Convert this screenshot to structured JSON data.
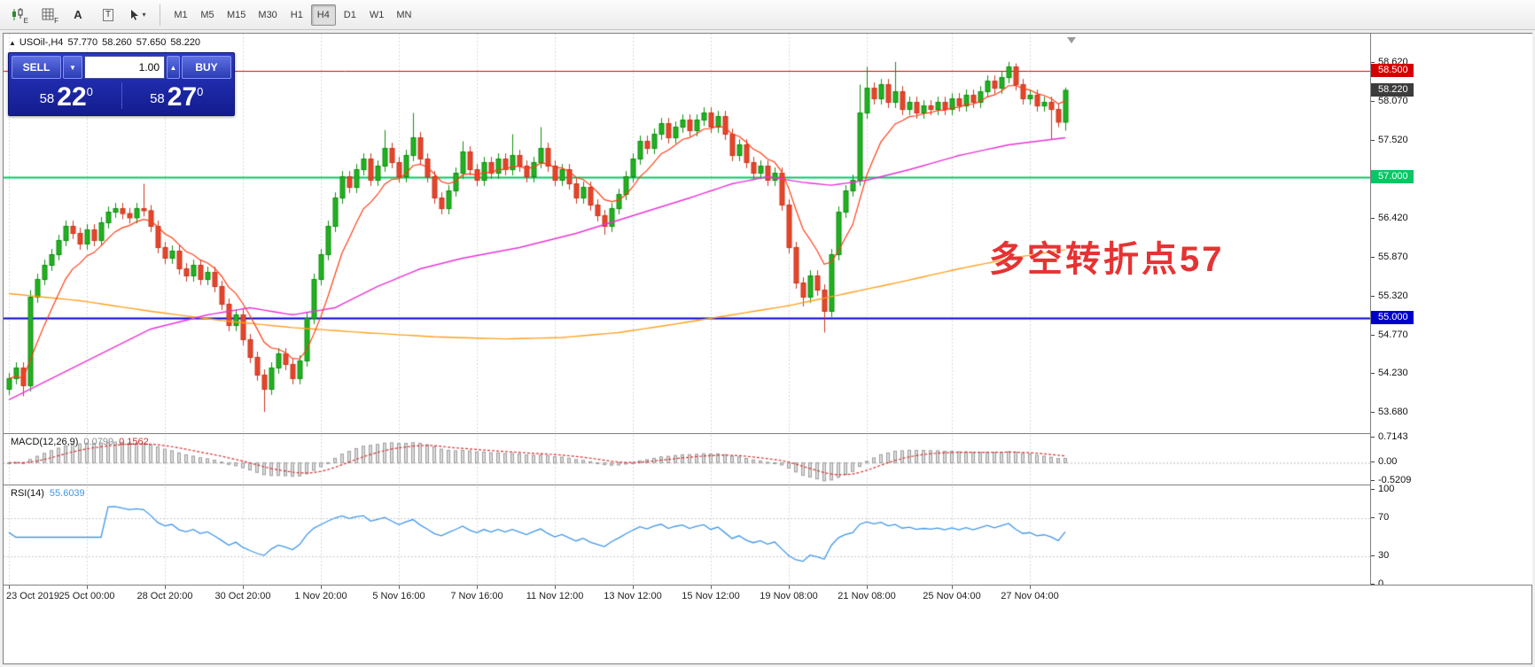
{
  "toolbar": {
    "icons": [
      {
        "id": "candle-chart",
        "sub": "E"
      },
      {
        "id": "indicator-grid",
        "sub": "F"
      },
      {
        "id": "font-tool",
        "label": "A"
      },
      {
        "id": "text-label-tool",
        "label": "T"
      },
      {
        "id": "cursor-tool",
        "chevron": "▾"
      }
    ],
    "timeframes": [
      {
        "label": "M1",
        "active": false
      },
      {
        "label": "M5",
        "active": false
      },
      {
        "label": "M15",
        "active": false
      },
      {
        "label": "M30",
        "active": false
      },
      {
        "label": "H1",
        "active": false
      },
      {
        "label": "H4",
        "active": true
      },
      {
        "label": "D1",
        "active": false
      },
      {
        "label": "W1",
        "active": false
      },
      {
        "label": "MN",
        "active": false
      }
    ]
  },
  "symbol_line": {
    "collapse_glyph": "▲",
    "symbol": "USOil-,H4",
    "open": "57.770",
    "high": "58.260",
    "low": "57.650",
    "close": "58.220"
  },
  "one_click": {
    "sell_label": "SELL",
    "buy_label": "BUY",
    "volume": "1.00",
    "spin_down": "▼",
    "spin_up": "▲",
    "sell_price": {
      "small": "58",
      "big": "22",
      "sup": "0"
    },
    "buy_price": {
      "small": "58",
      "big": "27",
      "sup": "0"
    }
  },
  "annotation": {
    "text": "多空转折点57",
    "color": "#e53333"
  },
  "macd_panel": {
    "name": "MACD(12,26,9)",
    "main_value": "0.0799",
    "signal_value": "0.1562"
  },
  "rsi_panel": {
    "name": "RSI(14)",
    "value": "55.6039"
  },
  "chart_data": {
    "type": "candlestick",
    "symbol": "USOil-",
    "timeframe": "H4",
    "price_axis": {
      "pmax": 59.02,
      "pmin": 53.38,
      "ticks": [
        {
          "v": 58.62,
          "label": "58.620"
        },
        {
          "v": 58.07,
          "label": "58.070"
        },
        {
          "v": 57.52,
          "label": "57.520"
        },
        {
          "v": 56.42,
          "label": "56.420"
        },
        {
          "v": 55.87,
          "label": "55.870"
        },
        {
          "v": 55.32,
          "label": "55.320"
        },
        {
          "v": 54.77,
          "label": "54.770"
        },
        {
          "v": 54.23,
          "label": "54.230"
        },
        {
          "v": 53.68,
          "label": "53.680"
        }
      ]
    },
    "hlines": [
      {
        "v": 58.5,
        "label": "58.500",
        "color": "#d40000",
        "width": 1
      },
      {
        "v": 57.0,
        "label": "57.000",
        "color": "#00c864",
        "width": 2
      },
      {
        "v": 55.0,
        "label": "55.000",
        "color": "#0000cc",
        "width": 2
      }
    ],
    "current_price": {
      "v": 58.22,
      "label": "58.220",
      "color": "#3c3c3c"
    },
    "colors": {
      "up": "#0b8f0b",
      "up_fill": "#23b023",
      "down": "#c8361f",
      "down_fill": "#e6452b",
      "ma_fast": "#ff3c14",
      "ma_mid": "#e832d8",
      "ma_slow": "#ffa01e",
      "grid": "#d9d9d9",
      "macd_hist_fill": "#dcdcdc",
      "macd_hist_stroke": "#9c9c9c",
      "macd_signal": "#d83030",
      "rsi_line": "#3e96e8"
    },
    "ma_fast_period": 8,
    "ma_mid_anchors": [
      [
        0,
        53.85
      ],
      [
        10,
        54.35
      ],
      [
        20,
        54.85
      ],
      [
        28,
        55.05
      ],
      [
        34,
        55.15
      ],
      [
        40,
        55.05
      ],
      [
        46,
        55.15
      ],
      [
        52,
        55.45
      ],
      [
        58,
        55.7
      ],
      [
        64,
        55.85
      ],
      [
        72,
        56.0
      ],
      [
        80,
        56.2
      ],
      [
        88,
        56.45
      ],
      [
        96,
        56.7
      ],
      [
        102,
        56.9
      ],
      [
        107,
        57.0
      ],
      [
        112,
        56.92
      ],
      [
        116,
        56.88
      ],
      [
        121,
        56.95
      ],
      [
        127,
        57.1
      ],
      [
        134,
        57.3
      ],
      [
        141,
        57.45
      ],
      [
        149,
        57.55
      ]
    ],
    "ma_slow_anchors": [
      [
        0,
        55.35
      ],
      [
        10,
        55.25
      ],
      [
        20,
        55.1
      ],
      [
        30,
        54.97
      ],
      [
        40,
        54.87
      ],
      [
        50,
        54.8
      ],
      [
        60,
        54.74
      ],
      [
        70,
        54.71
      ],
      [
        78,
        54.73
      ],
      [
        86,
        54.8
      ],
      [
        94,
        54.92
      ],
      [
        102,
        55.05
      ],
      [
        110,
        55.18
      ],
      [
        118,
        55.35
      ],
      [
        126,
        55.52
      ],
      [
        134,
        55.7
      ],
      [
        142,
        55.86
      ],
      [
        149,
        55.97
      ]
    ],
    "candles": [
      [
        54.0,
        54.23,
        53.92,
        54.15
      ],
      [
        54.15,
        54.38,
        54.07,
        54.3
      ],
      [
        54.3,
        54.38,
        53.9,
        54.05
      ],
      [
        54.05,
        55.4,
        53.97,
        55.3
      ],
      [
        55.3,
        55.63,
        55.22,
        55.55
      ],
      [
        55.55,
        55.83,
        55.47,
        55.75
      ],
      [
        55.75,
        55.98,
        55.67,
        55.9
      ],
      [
        55.9,
        56.18,
        55.82,
        56.1
      ],
      [
        56.1,
        56.38,
        56.02,
        56.3
      ],
      [
        56.3,
        56.38,
        56.12,
        56.2
      ],
      [
        56.2,
        56.28,
        55.97,
        56.05
      ],
      [
        56.05,
        56.33,
        55.97,
        56.25
      ],
      [
        56.25,
        56.33,
        56.02,
        56.1
      ],
      [
        56.1,
        56.43,
        56.02,
        56.35
      ],
      [
        56.35,
        56.58,
        56.27,
        56.5
      ],
      [
        56.5,
        56.63,
        56.42,
        56.55
      ],
      [
        56.55,
        56.63,
        56.4,
        56.48
      ],
      [
        56.48,
        56.56,
        56.34,
        56.42
      ],
      [
        56.42,
        56.63,
        56.34,
        56.55
      ],
      [
        56.55,
        56.9,
        56.44,
        56.52
      ],
      [
        56.52,
        56.6,
        56.22,
        56.3
      ],
      [
        56.3,
        56.38,
        55.92,
        56.0
      ],
      [
        56.0,
        56.08,
        55.77,
        55.85
      ],
      [
        55.85,
        56.03,
        55.77,
        55.95
      ],
      [
        55.95,
        56.03,
        55.62,
        55.7
      ],
      [
        55.7,
        55.78,
        55.52,
        55.6
      ],
      [
        55.6,
        55.83,
        55.52,
        55.75
      ],
      [
        55.75,
        55.83,
        55.47,
        55.55
      ],
      [
        55.55,
        55.73,
        55.47,
        55.65
      ],
      [
        55.65,
        55.73,
        55.37,
        55.45
      ],
      [
        55.45,
        55.53,
        55.12,
        55.2
      ],
      [
        55.2,
        55.28,
        54.82,
        54.9
      ],
      [
        54.9,
        55.13,
        54.82,
        55.05
      ],
      [
        55.05,
        55.13,
        54.62,
        54.7
      ],
      [
        54.7,
        54.78,
        54.37,
        54.45
      ],
      [
        54.45,
        54.53,
        54.12,
        54.2
      ],
      [
        54.2,
        54.28,
        53.68,
        54.0
      ],
      [
        54.0,
        54.38,
        53.92,
        54.3
      ],
      [
        54.3,
        54.58,
        54.22,
        54.5
      ],
      [
        54.5,
        54.58,
        54.27,
        54.35
      ],
      [
        54.35,
        54.43,
        54.07,
        54.15
      ],
      [
        54.15,
        54.48,
        54.07,
        54.4
      ],
      [
        54.4,
        55.08,
        54.32,
        55.0
      ],
      [
        55.0,
        55.63,
        54.92,
        55.55
      ],
      [
        55.55,
        55.98,
        55.47,
        55.9
      ],
      [
        55.9,
        56.38,
        55.82,
        56.3
      ],
      [
        56.3,
        56.78,
        56.22,
        56.7
      ],
      [
        56.7,
        57.08,
        56.62,
        57.0
      ],
      [
        57.0,
        57.08,
        56.77,
        56.85
      ],
      [
        56.85,
        57.18,
        56.77,
        57.1
      ],
      [
        57.1,
        57.33,
        57.02,
        57.25
      ],
      [
        57.25,
        57.33,
        56.87,
        56.95
      ],
      [
        56.95,
        57.23,
        56.87,
        57.15
      ],
      [
        57.15,
        57.66,
        57.07,
        57.4
      ],
      [
        57.4,
        57.48,
        57.12,
        57.2
      ],
      [
        57.2,
        57.28,
        56.92,
        57.0
      ],
      [
        57.0,
        57.38,
        56.92,
        57.3
      ],
      [
        57.3,
        57.9,
        57.22,
        57.55
      ],
      [
        57.55,
        57.63,
        57.17,
        57.25
      ],
      [
        57.25,
        57.33,
        56.92,
        57.0
      ],
      [
        57.0,
        57.08,
        56.62,
        56.7
      ],
      [
        56.7,
        56.78,
        56.47,
        56.55
      ],
      [
        56.55,
        56.88,
        56.47,
        56.8
      ],
      [
        56.8,
        57.13,
        56.72,
        57.05
      ],
      [
        57.05,
        57.5,
        56.97,
        57.35
      ],
      [
        57.35,
        57.43,
        57.02,
        57.1
      ],
      [
        57.1,
        57.18,
        56.87,
        56.95
      ],
      [
        56.95,
        57.28,
        56.87,
        57.2
      ],
      [
        57.2,
        57.28,
        56.97,
        57.05
      ],
      [
        57.05,
        57.33,
        56.97,
        57.25
      ],
      [
        57.25,
        57.33,
        57.02,
        57.1
      ],
      [
        57.1,
        57.6,
        57.02,
        57.3
      ],
      [
        57.3,
        57.38,
        57.07,
        57.15
      ],
      [
        57.15,
        57.23,
        56.92,
        57.0
      ],
      [
        57.0,
        57.28,
        56.92,
        57.2
      ],
      [
        57.2,
        57.7,
        57.12,
        57.4
      ],
      [
        57.4,
        57.48,
        57.07,
        57.15
      ],
      [
        57.15,
        57.23,
        56.87,
        56.95
      ],
      [
        56.95,
        57.18,
        56.87,
        57.1
      ],
      [
        57.1,
        57.18,
        56.82,
        56.9
      ],
      [
        56.9,
        56.98,
        56.62,
        56.7
      ],
      [
        56.7,
        56.93,
        56.62,
        56.85
      ],
      [
        56.85,
        56.93,
        56.52,
        56.6
      ],
      [
        56.6,
        56.68,
        56.37,
        56.45
      ],
      [
        56.45,
        56.53,
        56.18,
        56.3
      ],
      [
        56.3,
        56.63,
        56.22,
        56.55
      ],
      [
        56.55,
        56.83,
        56.47,
        56.75
      ],
      [
        56.75,
        57.08,
        56.67,
        57.0
      ],
      [
        57.0,
        57.33,
        56.92,
        57.25
      ],
      [
        57.25,
        57.58,
        57.17,
        57.5
      ],
      [
        57.5,
        57.58,
        57.32,
        57.4
      ],
      [
        57.4,
        57.68,
        57.32,
        57.6
      ],
      [
        57.6,
        57.83,
        57.52,
        57.75
      ],
      [
        57.75,
        57.83,
        57.47,
        57.55
      ],
      [
        57.55,
        57.78,
        57.47,
        57.7
      ],
      [
        57.7,
        57.88,
        57.62,
        57.8
      ],
      [
        57.8,
        57.88,
        57.57,
        57.65
      ],
      [
        57.65,
        57.88,
        57.57,
        57.8
      ],
      [
        57.8,
        57.98,
        57.72,
        57.9
      ],
      [
        57.9,
        57.98,
        57.62,
        57.7
      ],
      [
        57.7,
        57.93,
        57.62,
        57.85
      ],
      [
        57.85,
        57.93,
        57.52,
        57.6
      ],
      [
        57.6,
        57.68,
        57.22,
        57.3
      ],
      [
        57.3,
        57.53,
        57.22,
        57.45
      ],
      [
        57.45,
        57.53,
        57.12,
        57.2
      ],
      [
        57.2,
        57.28,
        56.97,
        57.05
      ],
      [
        57.05,
        57.23,
        56.97,
        57.15
      ],
      [
        57.15,
        57.23,
        56.87,
        56.95
      ],
      [
        56.95,
        57.13,
        56.87,
        57.05
      ],
      [
        57.05,
        57.13,
        56.52,
        56.6
      ],
      [
        56.6,
        56.68,
        55.92,
        56.0
      ],
      [
        56.0,
        56.08,
        55.42,
        55.5
      ],
      [
        55.5,
        55.58,
        55.17,
        55.3
      ],
      [
        55.3,
        55.68,
        55.22,
        55.6
      ],
      [
        55.6,
        55.68,
        55.32,
        55.4
      ],
      [
        55.4,
        55.48,
        54.8,
        55.1
      ],
      [
        55.1,
        55.98,
        55.02,
        55.9
      ],
      [
        55.9,
        56.58,
        55.82,
        56.5
      ],
      [
        56.5,
        56.88,
        56.42,
        56.8
      ],
      [
        56.8,
        57.03,
        56.72,
        56.95
      ],
      [
        56.95,
        58.3,
        56.87,
        57.9
      ],
      [
        57.9,
        58.55,
        57.82,
        58.25
      ],
      [
        58.25,
        58.33,
        58.02,
        58.1
      ],
      [
        58.1,
        58.38,
        58.02,
        58.3
      ],
      [
        58.3,
        58.38,
        57.97,
        58.05
      ],
      [
        58.05,
        58.62,
        57.97,
        58.2
      ],
      [
        58.2,
        58.28,
        57.87,
        57.95
      ],
      [
        57.95,
        58.13,
        57.87,
        58.05
      ],
      [
        58.05,
        58.13,
        57.82,
        57.9
      ],
      [
        57.9,
        58.08,
        57.82,
        58.0
      ],
      [
        58.0,
        58.08,
        57.87,
        57.95
      ],
      [
        57.95,
        58.13,
        57.87,
        58.05
      ],
      [
        58.05,
        58.13,
        57.87,
        57.95
      ],
      [
        57.95,
        58.18,
        57.87,
        58.1
      ],
      [
        58.1,
        58.18,
        57.92,
        58.0
      ],
      [
        58.0,
        58.23,
        57.92,
        58.15
      ],
      [
        58.15,
        58.23,
        57.97,
        58.05
      ],
      [
        58.05,
        58.28,
        57.97,
        58.2
      ],
      [
        58.2,
        58.43,
        58.12,
        58.35
      ],
      [
        58.35,
        58.43,
        58.17,
        58.25
      ],
      [
        58.25,
        58.48,
        58.17,
        58.4
      ],
      [
        58.4,
        58.62,
        58.32,
        58.55
      ],
      [
        58.55,
        58.6,
        58.22,
        58.3
      ],
      [
        58.3,
        58.38,
        58.02,
        58.1
      ],
      [
        58.1,
        58.23,
        58.02,
        58.15
      ],
      [
        58.15,
        58.23,
        57.92,
        58.0
      ],
      [
        58.0,
        58.13,
        57.92,
        58.05
      ],
      [
        58.05,
        58.13,
        57.52,
        57.95
      ],
      [
        57.95,
        58.03,
        57.7,
        57.77
      ],
      [
        57.77,
        58.26,
        57.65,
        58.22
      ]
    ],
    "macd": {
      "params": [
        12,
        26,
        9
      ],
      "axis_max": 0.788,
      "axis_min": -0.641,
      "ticks": [
        {
          "v": 0.7143,
          "label": "0.7143"
        },
        {
          "v": 0.0,
          "label": "0.00"
        },
        {
          "v": -0.5209,
          "label": "-0.5209"
        }
      ]
    },
    "rsi": {
      "period": 14,
      "axis_max": 103.74,
      "axis_min": -0.93,
      "ticks": [
        {
          "v": 100,
          "label": "100"
        },
        {
          "v": 70,
          "label": "70"
        },
        {
          "v": 30,
          "label": "30"
        },
        {
          "v": 0,
          "label": "0"
        }
      ],
      "levels": [
        70,
        30
      ]
    },
    "time_labels": [
      {
        "i": 0,
        "label": "23 Oct 2019"
      },
      {
        "i": 11,
        "label": "25 Oct 00:00"
      },
      {
        "i": 22,
        "label": "28 Oct 20:00"
      },
      {
        "i": 33,
        "label": "30 Oct 20:00"
      },
      {
        "i": 44,
        "label": "1 Nov 20:00"
      },
      {
        "i": 55,
        "label": "5 Nov 16:00"
      },
      {
        "i": 66,
        "label": "7 Nov 16:00"
      },
      {
        "i": 77,
        "label": "11 Nov 12:00"
      },
      {
        "i": 88,
        "label": "13 Nov 12:00"
      },
      {
        "i": 99,
        "label": "15 Nov 12:00"
      },
      {
        "i": 110,
        "label": "19 Nov 08:00"
      },
      {
        "i": 121,
        "label": "21 Nov 08:00"
      },
      {
        "i": 133,
        "label": "25 Nov 04:00"
      },
      {
        "i": 144,
        "label": "27 Nov 04:00"
      }
    ]
  }
}
